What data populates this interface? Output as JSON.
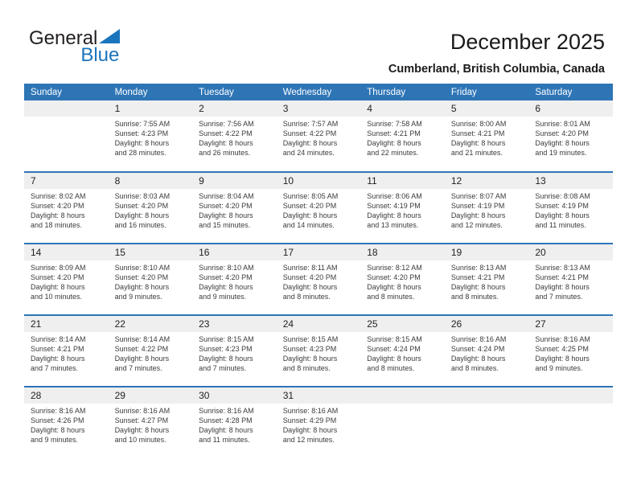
{
  "logo": {
    "part1": "General",
    "part2": "Blue"
  },
  "header": {
    "title": "December 2025",
    "subtitle": "Cumberland, British Columbia, Canada"
  },
  "weekdays": [
    "Sunday",
    "Monday",
    "Tuesday",
    "Wednesday",
    "Thursday",
    "Friday",
    "Saturday"
  ],
  "weeks": [
    [
      null,
      {
        "day": "1",
        "sunrise": "Sunrise: 7:55 AM",
        "sunset": "Sunset: 4:23 PM",
        "daylight1": "Daylight: 8 hours",
        "daylight2": "and 28 minutes."
      },
      {
        "day": "2",
        "sunrise": "Sunrise: 7:56 AM",
        "sunset": "Sunset: 4:22 PM",
        "daylight1": "Daylight: 8 hours",
        "daylight2": "and 26 minutes."
      },
      {
        "day": "3",
        "sunrise": "Sunrise: 7:57 AM",
        "sunset": "Sunset: 4:22 PM",
        "daylight1": "Daylight: 8 hours",
        "daylight2": "and 24 minutes."
      },
      {
        "day": "4",
        "sunrise": "Sunrise: 7:58 AM",
        "sunset": "Sunset: 4:21 PM",
        "daylight1": "Daylight: 8 hours",
        "daylight2": "and 22 minutes."
      },
      {
        "day": "5",
        "sunrise": "Sunrise: 8:00 AM",
        "sunset": "Sunset: 4:21 PM",
        "daylight1": "Daylight: 8 hours",
        "daylight2": "and 21 minutes."
      },
      {
        "day": "6",
        "sunrise": "Sunrise: 8:01 AM",
        "sunset": "Sunset: 4:20 PM",
        "daylight1": "Daylight: 8 hours",
        "daylight2": "and 19 minutes."
      }
    ],
    [
      {
        "day": "7",
        "sunrise": "Sunrise: 8:02 AM",
        "sunset": "Sunset: 4:20 PM",
        "daylight1": "Daylight: 8 hours",
        "daylight2": "and 18 minutes."
      },
      {
        "day": "8",
        "sunrise": "Sunrise: 8:03 AM",
        "sunset": "Sunset: 4:20 PM",
        "daylight1": "Daylight: 8 hours",
        "daylight2": "and 16 minutes."
      },
      {
        "day": "9",
        "sunrise": "Sunrise: 8:04 AM",
        "sunset": "Sunset: 4:20 PM",
        "daylight1": "Daylight: 8 hours",
        "daylight2": "and 15 minutes."
      },
      {
        "day": "10",
        "sunrise": "Sunrise: 8:05 AM",
        "sunset": "Sunset: 4:20 PM",
        "daylight1": "Daylight: 8 hours",
        "daylight2": "and 14 minutes."
      },
      {
        "day": "11",
        "sunrise": "Sunrise: 8:06 AM",
        "sunset": "Sunset: 4:19 PM",
        "daylight1": "Daylight: 8 hours",
        "daylight2": "and 13 minutes."
      },
      {
        "day": "12",
        "sunrise": "Sunrise: 8:07 AM",
        "sunset": "Sunset: 4:19 PM",
        "daylight1": "Daylight: 8 hours",
        "daylight2": "and 12 minutes."
      },
      {
        "day": "13",
        "sunrise": "Sunrise: 8:08 AM",
        "sunset": "Sunset: 4:19 PM",
        "daylight1": "Daylight: 8 hours",
        "daylight2": "and 11 minutes."
      }
    ],
    [
      {
        "day": "14",
        "sunrise": "Sunrise: 8:09 AM",
        "sunset": "Sunset: 4:20 PM",
        "daylight1": "Daylight: 8 hours",
        "daylight2": "and 10 minutes."
      },
      {
        "day": "15",
        "sunrise": "Sunrise: 8:10 AM",
        "sunset": "Sunset: 4:20 PM",
        "daylight1": "Daylight: 8 hours",
        "daylight2": "and 9 minutes."
      },
      {
        "day": "16",
        "sunrise": "Sunrise: 8:10 AM",
        "sunset": "Sunset: 4:20 PM",
        "daylight1": "Daylight: 8 hours",
        "daylight2": "and 9 minutes."
      },
      {
        "day": "17",
        "sunrise": "Sunrise: 8:11 AM",
        "sunset": "Sunset: 4:20 PM",
        "daylight1": "Daylight: 8 hours",
        "daylight2": "and 8 minutes."
      },
      {
        "day": "18",
        "sunrise": "Sunrise: 8:12 AM",
        "sunset": "Sunset: 4:20 PM",
        "daylight1": "Daylight: 8 hours",
        "daylight2": "and 8 minutes."
      },
      {
        "day": "19",
        "sunrise": "Sunrise: 8:13 AM",
        "sunset": "Sunset: 4:21 PM",
        "daylight1": "Daylight: 8 hours",
        "daylight2": "and 8 minutes."
      },
      {
        "day": "20",
        "sunrise": "Sunrise: 8:13 AM",
        "sunset": "Sunset: 4:21 PM",
        "daylight1": "Daylight: 8 hours",
        "daylight2": "and 7 minutes."
      }
    ],
    [
      {
        "day": "21",
        "sunrise": "Sunrise: 8:14 AM",
        "sunset": "Sunset: 4:21 PM",
        "daylight1": "Daylight: 8 hours",
        "daylight2": "and 7 minutes."
      },
      {
        "day": "22",
        "sunrise": "Sunrise: 8:14 AM",
        "sunset": "Sunset: 4:22 PM",
        "daylight1": "Daylight: 8 hours",
        "daylight2": "and 7 minutes."
      },
      {
        "day": "23",
        "sunrise": "Sunrise: 8:15 AM",
        "sunset": "Sunset: 4:23 PM",
        "daylight1": "Daylight: 8 hours",
        "daylight2": "and 7 minutes."
      },
      {
        "day": "24",
        "sunrise": "Sunrise: 8:15 AM",
        "sunset": "Sunset: 4:23 PM",
        "daylight1": "Daylight: 8 hours",
        "daylight2": "and 8 minutes."
      },
      {
        "day": "25",
        "sunrise": "Sunrise: 8:15 AM",
        "sunset": "Sunset: 4:24 PM",
        "daylight1": "Daylight: 8 hours",
        "daylight2": "and 8 minutes."
      },
      {
        "day": "26",
        "sunrise": "Sunrise: 8:16 AM",
        "sunset": "Sunset: 4:24 PM",
        "daylight1": "Daylight: 8 hours",
        "daylight2": "and 8 minutes."
      },
      {
        "day": "27",
        "sunrise": "Sunrise: 8:16 AM",
        "sunset": "Sunset: 4:25 PM",
        "daylight1": "Daylight: 8 hours",
        "daylight2": "and 9 minutes."
      }
    ],
    [
      {
        "day": "28",
        "sunrise": "Sunrise: 8:16 AM",
        "sunset": "Sunset: 4:26 PM",
        "daylight1": "Daylight: 8 hours",
        "daylight2": "and 9 minutes."
      },
      {
        "day": "29",
        "sunrise": "Sunrise: 8:16 AM",
        "sunset": "Sunset: 4:27 PM",
        "daylight1": "Daylight: 8 hours",
        "daylight2": "and 10 minutes."
      },
      {
        "day": "30",
        "sunrise": "Sunrise: 8:16 AM",
        "sunset": "Sunset: 4:28 PM",
        "daylight1": "Daylight: 8 hours",
        "daylight2": "and 11 minutes."
      },
      {
        "day": "31",
        "sunrise": "Sunrise: 8:16 AM",
        "sunset": "Sunset: 4:29 PM",
        "daylight1": "Daylight: 8 hours",
        "daylight2": "and 12 minutes."
      },
      null,
      null,
      null
    ]
  ],
  "colors": {
    "header_bg": "#2E75B6",
    "separator": "#2E75B6",
    "date_band_bg": "#EFEFEF",
    "logo_blue": "#1B75BC",
    "logo_dark": "#231F20",
    "text": "#3B3B3B"
  }
}
